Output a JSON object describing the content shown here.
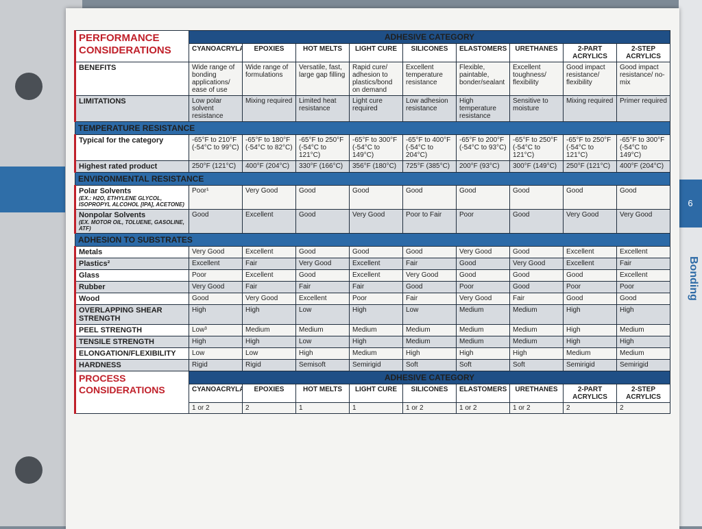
{
  "header": {
    "title_line1": "PERFORMANCE",
    "title_line2": "CONSIDERATIONS",
    "category_label": "ADHESIVE CATEGORY"
  },
  "columns": [
    "CYANOACRYLATES",
    "EPOXIES",
    "HOT MELTS",
    "LIGHT CURE",
    "SILICONES",
    "ELASTOMERS",
    "URETHANES",
    "2-PART ACRYLICS",
    "2-STEP ACRYLICS"
  ],
  "chart_data": {
    "type": "table",
    "rows": [
      {
        "label": "BENEFITS",
        "values": [
          "Wide range of bonding applications/ ease of use",
          "Wide range of formulations",
          "Versatile, fast, large gap filling",
          "Rapid cure/ adhesion to plastics/bond on demand",
          "Excellent temperature resistance",
          "Flexible, paintable, bonder/sealant",
          "Excellent toughness/ flexibility",
          "Good impact resistance/ flexibility",
          "Good impact resistance/ no-mix"
        ]
      },
      {
        "label": "LIMITATIONS",
        "values": [
          "Low polar solvent resistance",
          "Mixing required",
          "Limited heat resistance",
          "Light cure required",
          "Low adhesion resistance",
          "High temperature resistance",
          "Sensitive to moisture",
          "Mixing required",
          "Primer required"
        ]
      },
      {
        "section": "TEMPERATURE RESISTANCE"
      },
      {
        "label": "Typical for the category",
        "values": [
          "-65°F to 210°F (-54°C to 99°C)",
          "-65°F to 180°F (-54°C to 82°C)",
          "-65°F to 250°F (-54°C to 121°C)",
          "-65°F to 300°F (-54°C to 149°C)",
          "-65°F to 400°F (-54°C to 204°C)",
          "-65°F to 200°F (-54°C to 93°C)",
          "-65°F to 250°F (-54°C to 121°C)",
          "-65°F to 250°F (-54°C to 121°C)",
          "-65°F to 300°F (-54°C to 149°C)"
        ]
      },
      {
        "label": "Highest rated product",
        "values": [
          "250°F (121°C)",
          "400°F (204°C)",
          "330°F (166°C)",
          "356°F (180°C)",
          "725°F (385°C)",
          "200°F (93°C)",
          "300°F (149°C)",
          "250°F (121°C)",
          "400°F (204°C)"
        ]
      },
      {
        "section": "ENVIRONMENTAL RESISTANCE"
      },
      {
        "label": "Polar Solvents",
        "note": "(EX.: H2O, ETHYLENE GLYCOL, ISOPROPYL ALCOHOL [IPA], ACETONE)",
        "values": [
          "Poor¹",
          "Very Good",
          "Good",
          "Good",
          "Good",
          "Good",
          "Good",
          "Good",
          "Good"
        ]
      },
      {
        "label": "Nonpolar Solvents",
        "note": "(EX. MOTOR OIL, TOLUENE, GASOLINE, ATF)",
        "values": [
          "Good",
          "Excellent",
          "Good",
          "Very Good",
          "Poor to Fair",
          "Poor",
          "Good",
          "Very Good",
          "Very Good"
        ]
      },
      {
        "section": "ADHESION TO SUBSTRATES"
      },
      {
        "label": "Metals",
        "values": [
          "Very Good",
          "Excellent",
          "Good",
          "Good",
          "Good",
          "Very Good",
          "Good",
          "Excellent",
          "Excellent"
        ]
      },
      {
        "label": "Plastics²",
        "values": [
          "Excellent",
          "Fair",
          "Very Good",
          "Excellent",
          "Fair",
          "Good",
          "Very Good",
          "Excellent",
          "Fair"
        ]
      },
      {
        "label": "Glass",
        "values": [
          "Poor",
          "Excellent",
          "Good",
          "Excellent",
          "Very Good",
          "Good",
          "Good",
          "Good",
          "Excellent"
        ]
      },
      {
        "label": "Rubber",
        "values": [
          "Very Good",
          "Fair",
          "Fair",
          "Fair",
          "Good",
          "Poor",
          "Good",
          "Poor",
          "Poor"
        ]
      },
      {
        "label": "Wood",
        "values": [
          "Good",
          "Very Good",
          "Excellent",
          "Poor",
          "Fair",
          "Very Good",
          "Fair",
          "Good",
          "Good"
        ]
      },
      {
        "label": "OVERLAPPING SHEAR STRENGTH",
        "values": [
          "High",
          "High",
          "Low",
          "High",
          "Low",
          "Medium",
          "Medium",
          "High",
          "High"
        ]
      },
      {
        "label": "PEEL STRENGTH",
        "values": [
          "Low³",
          "Medium",
          "Medium",
          "Medium",
          "Medium",
          "Medium",
          "Medium",
          "High",
          "Medium"
        ]
      },
      {
        "label": "TENSILE STRENGTH",
        "values": [
          "High",
          "High",
          "Low",
          "High",
          "Medium",
          "Medium",
          "Medium",
          "High",
          "High"
        ]
      },
      {
        "label": "ELONGATION/FLEXIBILITY",
        "values": [
          "Low",
          "Low",
          "High",
          "Medium",
          "High",
          "High",
          "High",
          "Medium",
          "Medium"
        ]
      },
      {
        "label": "HARDNESS",
        "values": [
          "Rigid",
          "Rigid",
          "Semisoft",
          "Semirigid",
          "Soft",
          "Soft",
          "Soft",
          "Semirigid",
          "Semirigid"
        ]
      }
    ]
  },
  "process": {
    "title_line1": "PROCESS",
    "title_line2": "CONSIDERATIONS",
    "category_label": "ADHESIVE CATEGORY",
    "first_row": [
      "1 or 2",
      "2",
      "1",
      "1",
      "1 or 2",
      "1 or 2",
      "1 or 2",
      "2",
      "2"
    ]
  },
  "side": {
    "tab_text": "6",
    "label": "Bonding"
  }
}
